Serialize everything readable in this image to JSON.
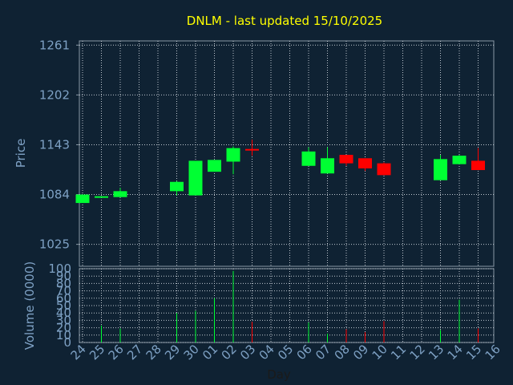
{
  "chart_data": {
    "type": "candlestick",
    "title": "DNLM - last updated 15/10/2025",
    "xlabel": "Day",
    "price_panel": {
      "ylabel": "Price",
      "ylim": [
        999,
        1266
      ],
      "yticks": [
        "1261",
        "1202",
        "1143",
        "1084",
        "1025"
      ],
      "ytick_values": [
        1261,
        1202,
        1143,
        1084,
        1025
      ]
    },
    "volume_panel": {
      "ylabel": "Volume (0000)",
      "ylim": [
        0,
        100
      ],
      "yticks": [
        "100",
        "90",
        "80",
        "70",
        "60",
        "50",
        "40",
        "30",
        "20",
        "10",
        "0"
      ],
      "ytick_values": [
        100,
        90,
        80,
        70,
        60,
        50,
        40,
        30,
        20,
        10,
        0
      ]
    },
    "categories": [
      "24",
      "25",
      "26",
      "27",
      "28",
      "29",
      "30",
      "01",
      "02",
      "03",
      "04",
      "05",
      "06",
      "07",
      "08",
      "09",
      "10",
      "11",
      "12",
      "13",
      "14",
      "15",
      "16"
    ],
    "candles": [
      {
        "day": "24",
        "open": 1074,
        "high": 1084,
        "low": 1074,
        "close": 1084,
        "volume": 0
      },
      {
        "day": "25",
        "open": 1082,
        "high": 1082,
        "low": 1082,
        "close": 1082,
        "volume": 23
      },
      {
        "day": "26",
        "open": 1081,
        "high": 1092,
        "low": 1081,
        "close": 1088,
        "volume": 19
      },
      {
        "day": "27",
        "open": null,
        "high": null,
        "low": null,
        "close": null,
        "volume": 0
      },
      {
        "day": "28",
        "open": null,
        "high": null,
        "low": null,
        "close": null,
        "volume": 0
      },
      {
        "day": "29",
        "open": 1088,
        "high": 1100,
        "low": 1083,
        "close": 1099,
        "volume": 40
      },
      {
        "day": "30",
        "open": 1083,
        "high": 1124,
        "low": 1083,
        "close": 1124,
        "volume": 43
      },
      {
        "day": "01",
        "open": 1111,
        "high": 1125,
        "low": 1111,
        "close": 1125,
        "volume": 60
      },
      {
        "day": "02",
        "open": 1123,
        "high": 1141,
        "low": 1108,
        "close": 1139,
        "volume": 97
      },
      {
        "day": "03",
        "open": 1138,
        "high": 1149,
        "low": 1130,
        "close": 1137,
        "volume": 28
      },
      {
        "day": "04",
        "open": null,
        "high": null,
        "low": null,
        "close": null,
        "volume": 0
      },
      {
        "day": "05",
        "open": null,
        "high": null,
        "low": null,
        "close": null,
        "volume": 0
      },
      {
        "day": "06",
        "open": 1118,
        "high": 1140,
        "low": 1118,
        "close": 1135,
        "volume": 27
      },
      {
        "day": "07",
        "open": 1109,
        "high": 1140,
        "low": 1109,
        "close": 1127,
        "volume": 12
      },
      {
        "day": "08",
        "open": 1131,
        "high": 1131,
        "low": 1118,
        "close": 1121,
        "volume": 18
      },
      {
        "day": "09",
        "open": 1127,
        "high": 1127,
        "low": 1112,
        "close": 1115,
        "volume": 14
      },
      {
        "day": "10",
        "open": 1121,
        "high": 1122,
        "low": 1107,
        "close": 1107,
        "volume": 29
      },
      {
        "day": "11",
        "open": null,
        "high": null,
        "low": null,
        "close": null,
        "volume": 0
      },
      {
        "day": "12",
        "open": null,
        "high": null,
        "low": null,
        "close": null,
        "volume": 0
      },
      {
        "day": "13",
        "open": 1101,
        "high": 1131,
        "low": 1101,
        "close": 1126,
        "volume": 17
      },
      {
        "day": "14",
        "open": 1120,
        "high": 1131,
        "low": 1120,
        "close": 1130,
        "volume": 58
      },
      {
        "day": "15",
        "open": 1124,
        "high": 1139,
        "low": 1113,
        "close": 1113,
        "volume": 19
      },
      {
        "day": "16",
        "open": null,
        "high": null,
        "low": null,
        "close": null,
        "volume": 0
      }
    ],
    "colors": {
      "background": "#0f2233",
      "plot_border": "#8a98a6",
      "grid": "#bfc7cf",
      "title": "#ffff00",
      "axis_text": "#7ea1c4",
      "day_label": "#1a1a1a",
      "up": "#00ff33",
      "down": "#ff0000"
    },
    "grid": true,
    "legend": "none"
  }
}
